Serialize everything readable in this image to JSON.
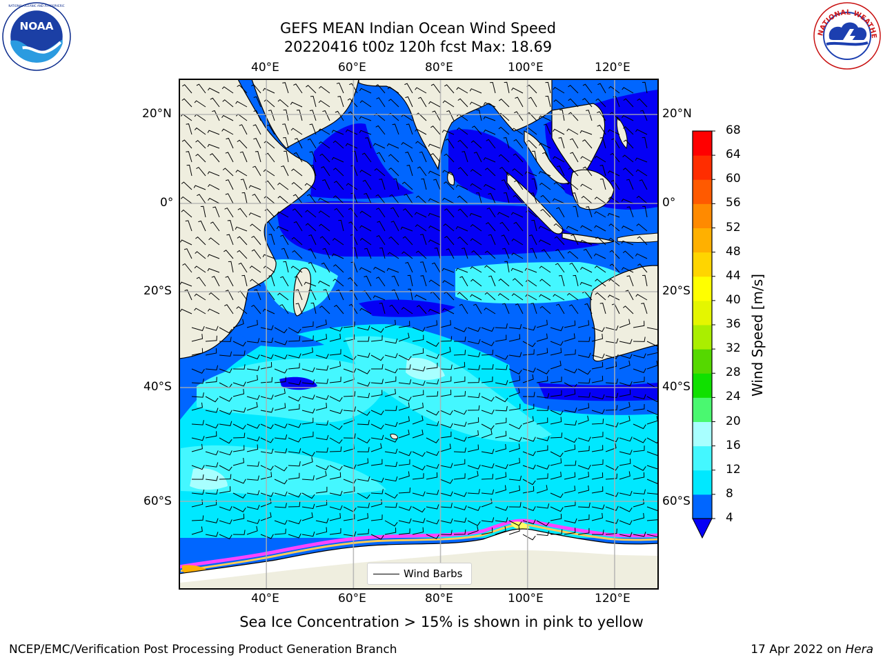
{
  "header": {
    "title_line1": "GEFS MEAN Indian Ocean Wind Speed",
    "title_line2": "20220416 t00z 120h fcst   Max: 18.69"
  },
  "logos": {
    "noaa": {
      "icon": "noaa-logo",
      "text": "NOAA",
      "ring_text": "NATIONAL OCEANIC AND ATMOSPHERIC ADMINISTRATION · U.S. DEPARTMENT OF COMMERCE"
    },
    "nws": {
      "icon": "nws-logo",
      "ring_text": "NATIONAL WEATHER SERVICE"
    }
  },
  "map": {
    "region": "Indian Ocean",
    "lon_range": [
      20,
      130
    ],
    "lat_range": [
      -75,
      27
    ],
    "top_lon_ticks": [
      "40°E",
      "60°E",
      "80°E",
      "100°E",
      "120°E"
    ],
    "bottom_lon_ticks": [
      "40°E",
      "60°E",
      "80°E",
      "100°E",
      "120°E"
    ],
    "left_lat_ticks": [
      "20°N",
      "0°",
      "20°S",
      "40°S",
      "60°S"
    ],
    "right_lat_ticks": [
      "20°N",
      "0°",
      "20°S",
      "40°S",
      "60°S"
    ],
    "grid": true,
    "land_color": "#efeedf",
    "ice_colors": [
      "#ff44ff",
      "#ff88aa",
      "#ffcc55",
      "#ffff66"
    ],
    "legend_label": "Wind Barbs"
  },
  "colorbar": {
    "label": "Wind Speed [m/s]",
    "ticks": [
      "4",
      "8",
      "12",
      "16",
      "20",
      "24",
      "28",
      "32",
      "36",
      "40",
      "44",
      "48",
      "52",
      "56",
      "60",
      "64",
      "68"
    ],
    "colors": [
      "#0500f5",
      "#0066ff",
      "#00e8ff",
      "#44f7ff",
      "#a8ffff",
      "#4af870",
      "#10e000",
      "#55d800",
      "#aaee00",
      "#e4f600",
      "#ffff00",
      "#ffd500",
      "#ffb000",
      "#ff8a00",
      "#ff5a00",
      "#ff2d00",
      "#ff0000"
    ],
    "under_color": "#0500f5"
  },
  "caption": "Sea Ice Concentration > 15% is shown in pink to yellow",
  "footer": {
    "left": "NCEP/EMC/Verification Post Processing Product Generation Branch",
    "date": "17 Apr 2022 on",
    "machine": "Hera"
  }
}
